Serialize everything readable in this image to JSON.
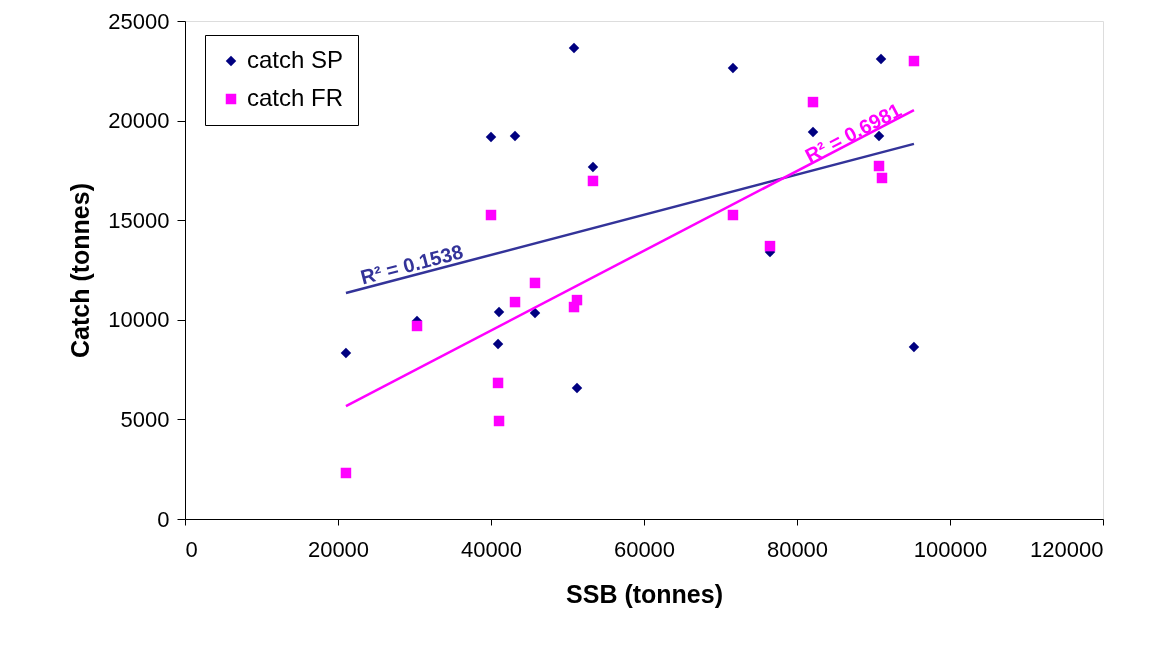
{
  "chart_data": {
    "type": "scatter",
    "xlabel": "SSB (tonnes)",
    "ylabel": "Catch (tonnes)",
    "xlim": [
      0,
      120000
    ],
    "ylim": [
      0,
      25000
    ],
    "xticks": [
      0,
      20000,
      40000,
      60000,
      80000,
      100000,
      120000
    ],
    "yticks": [
      0,
      5000,
      10000,
      15000,
      20000,
      25000
    ],
    "grid": false,
    "legend": "top left",
    "series": [
      {
        "name": "catch SP",
        "color": "#000080",
        "marker": "diamond",
        "x": [
          21040,
          30330,
          40000,
          43140,
          41050,
          40920,
          45750,
          50850,
          51240,
          53330,
          71630,
          76470,
          82090,
          90720,
          90980,
          95290
        ],
        "values": [
          8330,
          9940,
          19180,
          19230,
          10390,
          8790,
          10340,
          23650,
          6580,
          17670,
          22640,
          13400,
          19430,
          19230,
          23090,
          8630
        ]
      },
      {
        "name": "catch FR",
        "color": "#ff00ff",
        "marker": "square",
        "x": [
          21040,
          30330,
          40000,
          40920,
          41050,
          43140,
          45750,
          50850,
          51240,
          53330,
          71630,
          76470,
          82090,
          90720,
          91110,
          95290
        ],
        "values": [
          2310,
          9690,
          15260,
          6830,
          4920,
          10890,
          11850,
          10640,
          10990,
          16970,
          15260,
          13700,
          20930,
          17720,
          17120,
          22990
        ]
      },
      {
        "type": "line",
        "color": "#333399",
        "x": [
          21040,
          95290
        ],
        "values": [
          11345,
          18830
        ]
      },
      {
        "type": "line",
        "color": "#ff00ff",
        "x": [
          21040,
          95290
        ],
        "values": [
          5670,
          20530
        ]
      }
    ],
    "annotations": [
      {
        "text": "R² = 0.1538",
        "x": 30000,
        "y": 12250
      },
      {
        "text": "R² = 0.6981",
        "x": 88000,
        "y": 18900
      }
    ]
  }
}
